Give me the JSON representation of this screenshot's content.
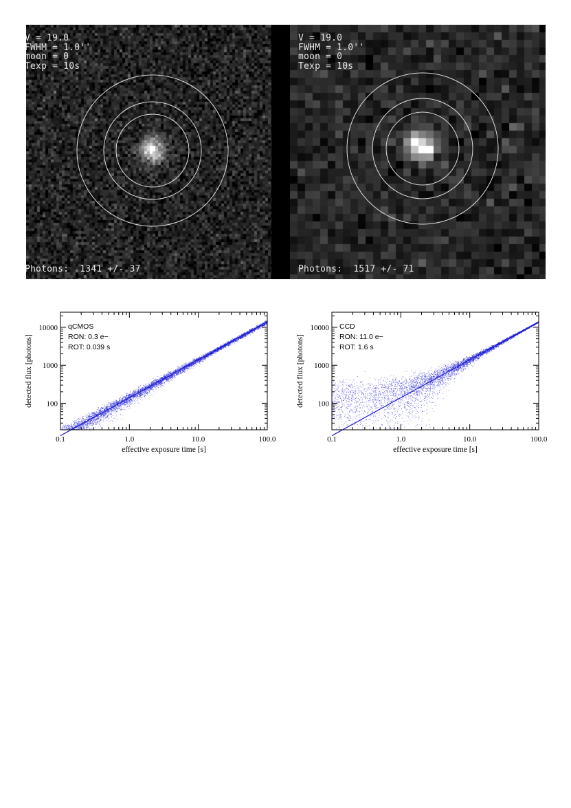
{
  "images": [
    {
      "id": "left",
      "lines": [
        "V = 19.0",
        "FWHM = 1.0''",
        "moon = 0",
        "Texp = 10s"
      ],
      "photons": "Photons:  1341 +/- 37",
      "pixel_scale": "fine"
    },
    {
      "id": "right",
      "lines": [
        "V = 19.0",
        "FWHM = 1.0''",
        "moon = 0",
        "Texp = 10s"
      ],
      "photons": "Photons:  1517 +/- 71",
      "pixel_scale": "coarse"
    }
  ],
  "chart_data": [
    {
      "type": "scatter",
      "title": "",
      "annotations": [
        "qCMOS",
        "RON: 0.3 e−",
        "ROT: 0.039 s"
      ],
      "xlabel": "effective exposure time [s]",
      "ylabel": "detected flux [photons]",
      "xscale": "log",
      "yscale": "log",
      "xlim": [
        0.1,
        100.0
      ],
      "ylim": [
        20,
        25000
      ],
      "xticks": [
        "0.1",
        "1.0",
        "10.0",
        "100.0"
      ],
      "yticks": [
        "100",
        "1000",
        "10000"
      ],
      "series": [
        {
          "color": "#1f1fd6",
          "trend": {
            "x": [
              0.1,
              100.0
            ],
            "y": [
              14,
              14000
            ]
          },
          "scatter_sigma_dex": 0.1,
          "floor": 0,
          "points": 6000
        }
      ]
    },
    {
      "type": "scatter",
      "title": "",
      "annotations": [
        "CCD",
        "RON: 11.0 e−",
        "ROT: 1.6 s"
      ],
      "xlabel": "effective exposure time [s]",
      "ylabel": "detected flux [photons]",
      "xscale": "log",
      "yscale": "log",
      "xlim": [
        0.1,
        100.0
      ],
      "ylim": [
        20,
        25000
      ],
      "xticks": [
        "0.1",
        "1.0",
        "10.0",
        "100.0"
      ],
      "yticks": [
        "100",
        "1000",
        "10000"
      ],
      "series": [
        {
          "color": "#1f1fd6",
          "trend": {
            "x": [
              0.1,
              100.0
            ],
            "y": [
              14,
              14000
            ]
          },
          "scatter_sigma_dex": 0.1,
          "floor": 160,
          "points": 6000
        }
      ]
    }
  ]
}
